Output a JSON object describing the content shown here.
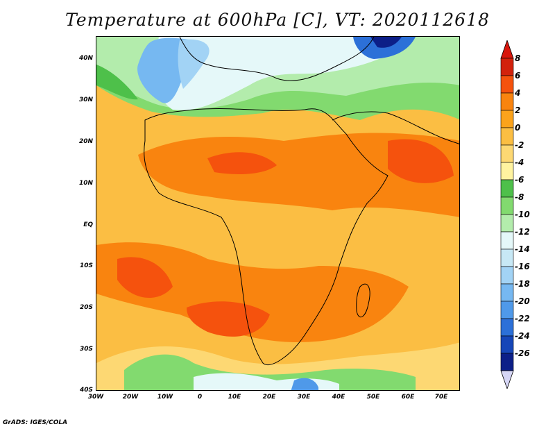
{
  "title": "Temperature at 600hPa [C], VT: 2020112618",
  "credit": "GrADS: IGES/COLA",
  "lat_labels": [
    "40N",
    "30N",
    "20N",
    "10N",
    "EQ",
    "10S",
    "20S",
    "30S",
    "40S"
  ],
  "lon_labels": [
    "30W",
    "20W",
    "10W",
    "0",
    "10E",
    "20E",
    "30E",
    "40E",
    "50E",
    "60E",
    "70E"
  ],
  "colorbar": {
    "labels": [
      "8",
      "6",
      "4",
      "2",
      "0",
      "-2",
      "-4",
      "-6",
      "-8",
      "-10",
      "-12",
      "-14",
      "-16",
      "-18",
      "-20",
      "-22",
      "-24",
      "-26"
    ],
    "colors": [
      "#d2220c",
      "#f5520d",
      "#f9840f",
      "#fba31c",
      "#fbbe43",
      "#fdd873",
      "#fff3a0",
      "#4ec04a",
      "#82da6f",
      "#b3ecac",
      "#e5f8f9",
      "#c7e8f5",
      "#a2d3f5",
      "#76b8f1",
      "#4f99e9",
      "#2c70d8",
      "#1646b8",
      "#0c1f88"
    ],
    "top_cap_color": "#d8160c",
    "bottom_cap_color": "#d6d6f6"
  }
}
